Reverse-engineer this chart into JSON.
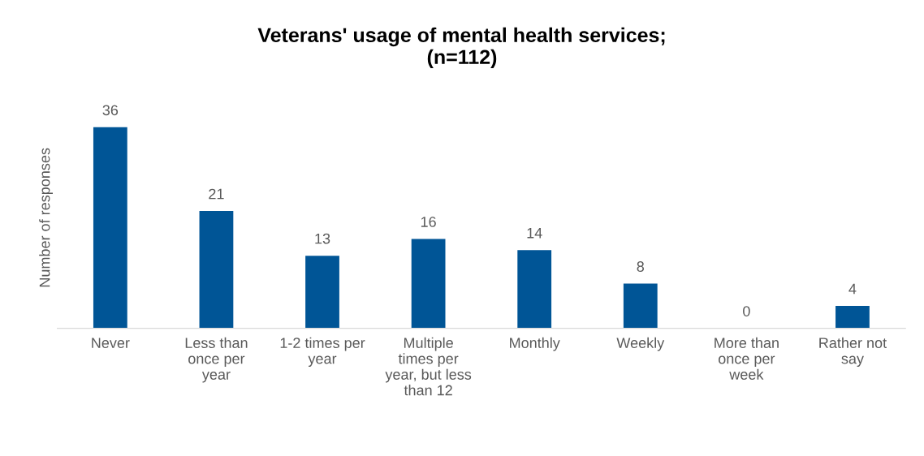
{
  "chart_data": {
    "type": "bar",
    "title": "Veterans' usage of mental health services;\n(n=112)",
    "ylabel": "Number of responses",
    "categories": [
      "Never",
      "Less than\nonce per\nyear",
      "1-2 times per\nyear",
      "Multiple\ntimes per\nyear, but less\nthan 12",
      "Monthly",
      "Weekly",
      "More than\nonce per\nweek",
      "Rather not\nsay"
    ],
    "values": [
      36,
      21,
      13,
      16,
      14,
      8,
      0,
      4
    ],
    "color": "#005596",
    "data_labels": true,
    "grid": false,
    "legend": false
  }
}
